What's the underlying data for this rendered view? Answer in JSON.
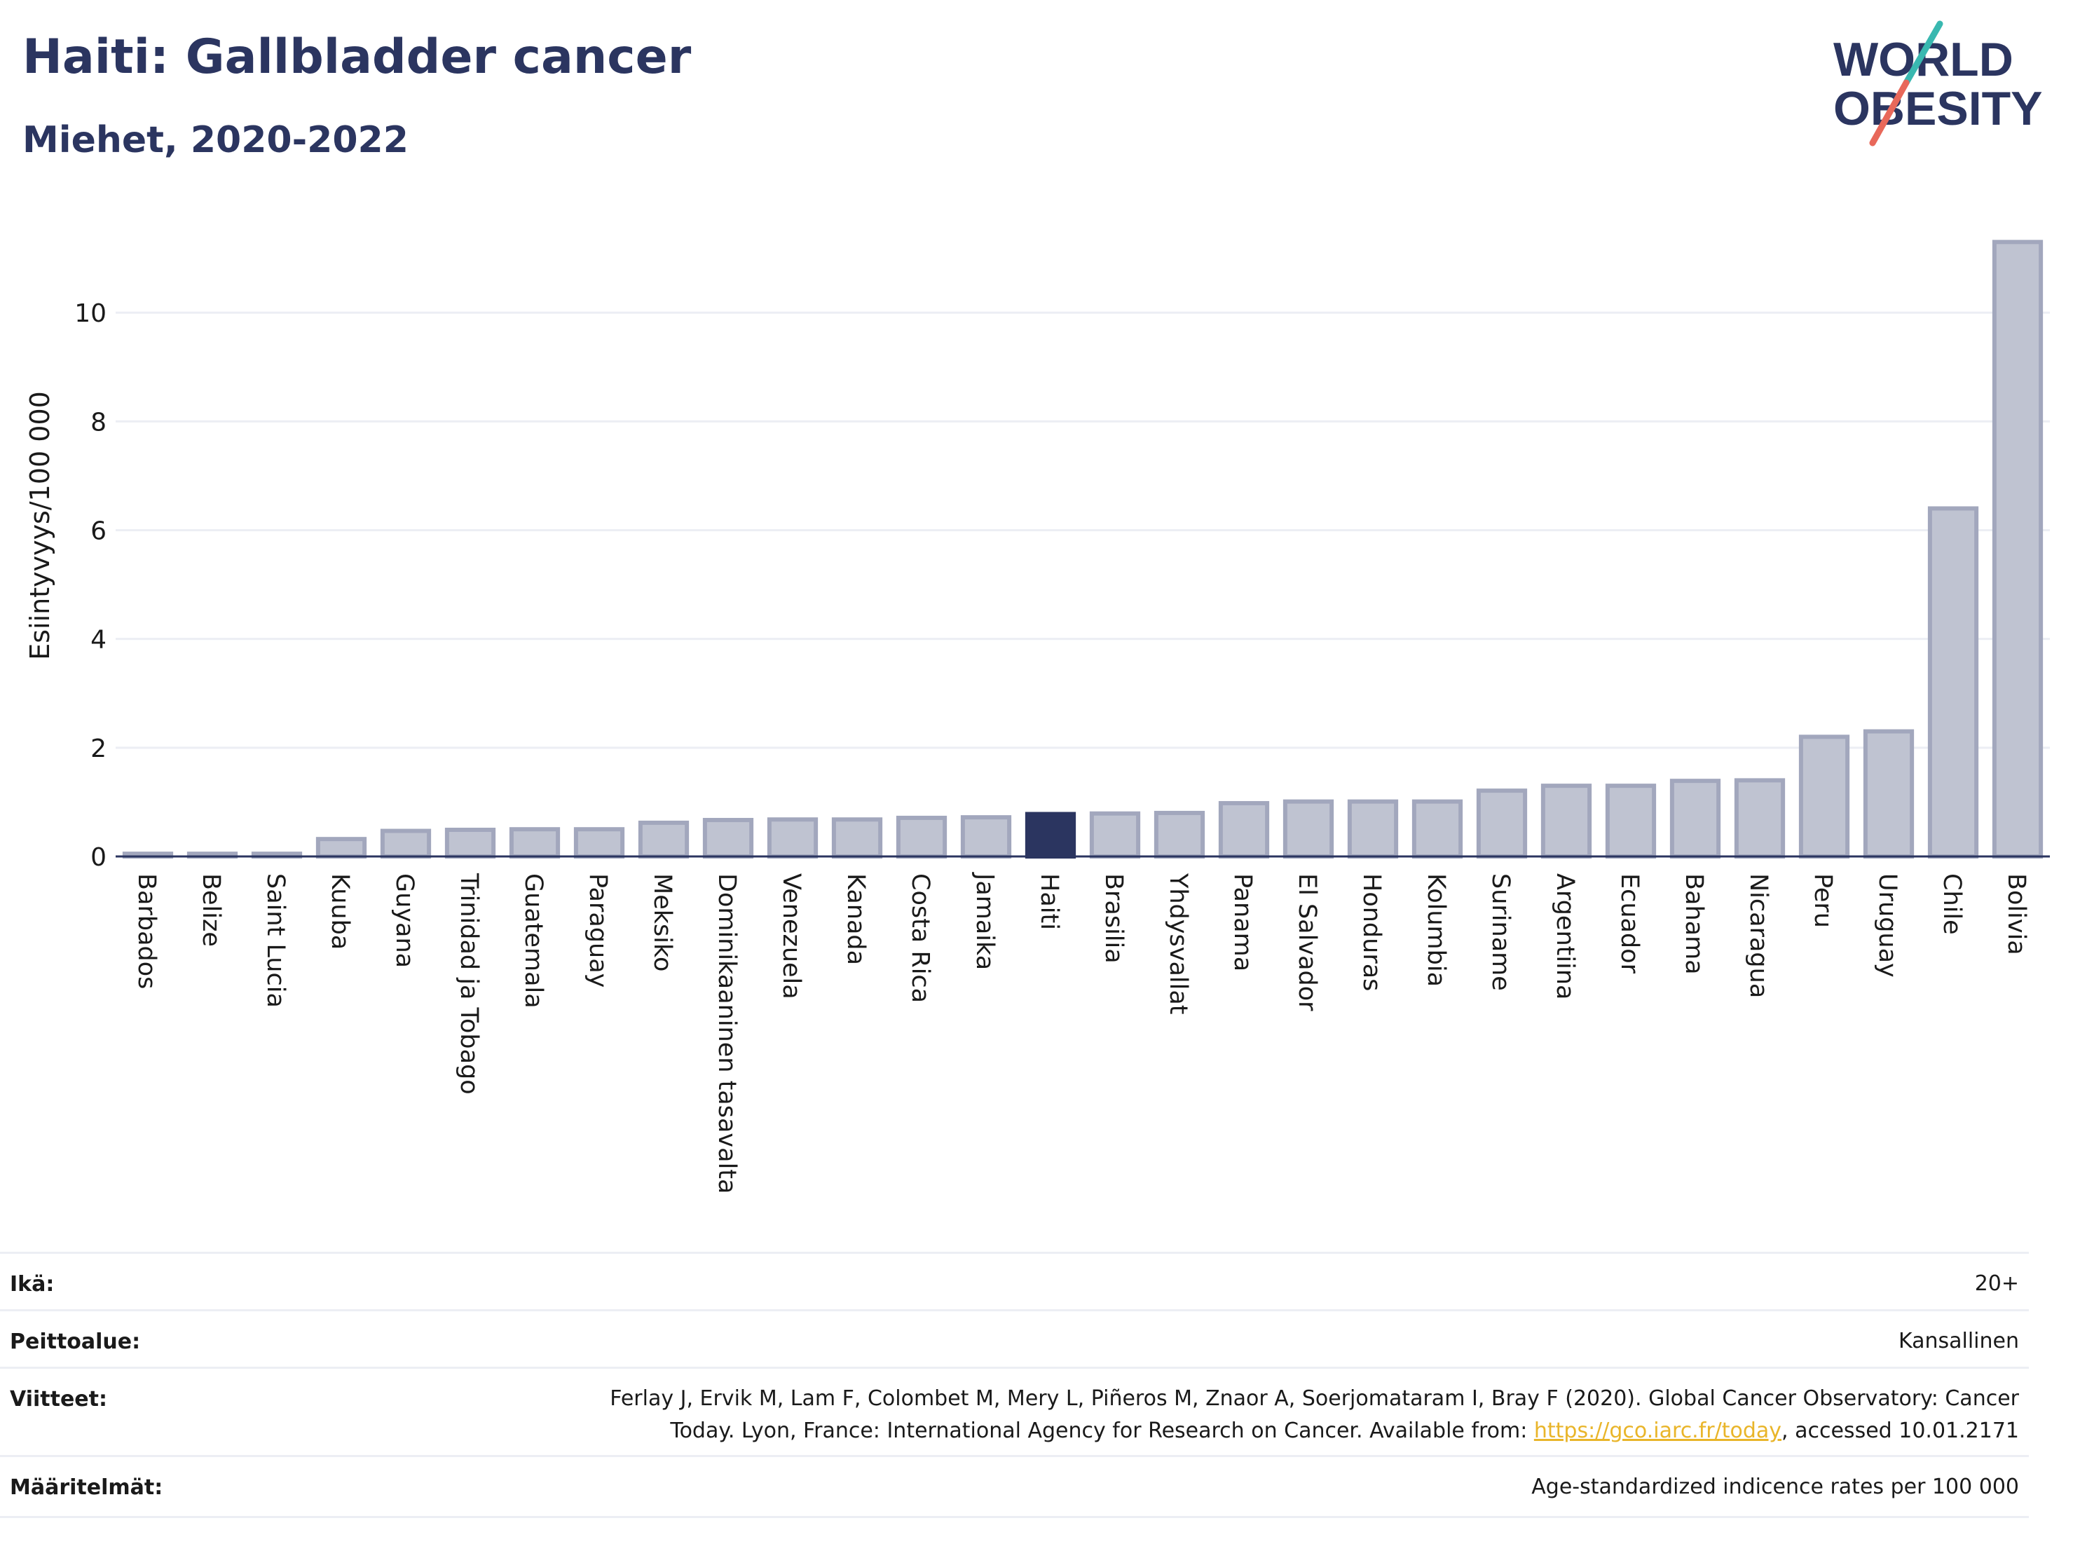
{
  "header": {
    "title": "Haiti: Gallbladder cancer",
    "subtitle": "Miehet, 2020-2022",
    "logo_line1": "WORLD",
    "logo_line2": "OBESITY"
  },
  "chart_data": {
    "type": "bar",
    "ylabel": "Esiintyvyys/100 000",
    "ylim": [
      0,
      11.6
    ],
    "yticks": [
      0,
      2,
      4,
      6,
      8,
      10
    ],
    "grid": true,
    "highlight": "Haiti",
    "colors": {
      "bar": "#bfc3d1",
      "bar_edge": "#a2a7bd",
      "highlight": "#2b3560",
      "grid": "#eceef4",
      "axis": "#2b3560"
    },
    "categories": [
      "Barbados",
      "Belize",
      "Saint Lucia",
      "Kuuba",
      "Guyana",
      "Trinidad ja Tobago",
      "Guatemala",
      "Paraguay",
      "Meksiko",
      "Dominikaaninen tasavalta",
      "Venezuela",
      "Kanada",
      "Costa Rica",
      "Jamaika",
      "Haiti",
      "Brasilia",
      "Yhdysvallat",
      "Panama",
      "El Salvador",
      "Honduras",
      "Kolumbia",
      "Suriname",
      "Argentiina",
      "Ecuador",
      "Bahama",
      "Nicaragua",
      "Peru",
      "Uruguay",
      "Chile",
      "Bolivia"
    ],
    "values": [
      0.05,
      0.05,
      0.05,
      0.32,
      0.47,
      0.49,
      0.5,
      0.5,
      0.62,
      0.67,
      0.68,
      0.68,
      0.71,
      0.72,
      0.78,
      0.79,
      0.8,
      0.98,
      1.01,
      1.01,
      1.01,
      1.21,
      1.3,
      1.3,
      1.39,
      1.4,
      2.2,
      2.3,
      6.4,
      11.3
    ]
  },
  "meta": {
    "rows": [
      {
        "label": "Ikä:",
        "value": "20+"
      },
      {
        "label": "Peittoalue:",
        "value": "Kansallinen"
      },
      {
        "label": "Viitteet:",
        "value_line1": "Ferlay J, Ervik M, Lam F, Colombet M, Mery L, Piñeros M, Znaor A, Soerjomataram I, Bray F (2020). Global Cancer Observatory: Cancer",
        "value_line2_pre": "Today. Lyon, France: International Agency for Research on Cancer. Available from: ",
        "value_link": "https://gco.iarc.fr/today",
        "value_line2_post": ", accessed 10.01.2171"
      },
      {
        "label": "Määritelmät:",
        "value": "Age-standardized indicence rates per 100 000"
      }
    ]
  }
}
